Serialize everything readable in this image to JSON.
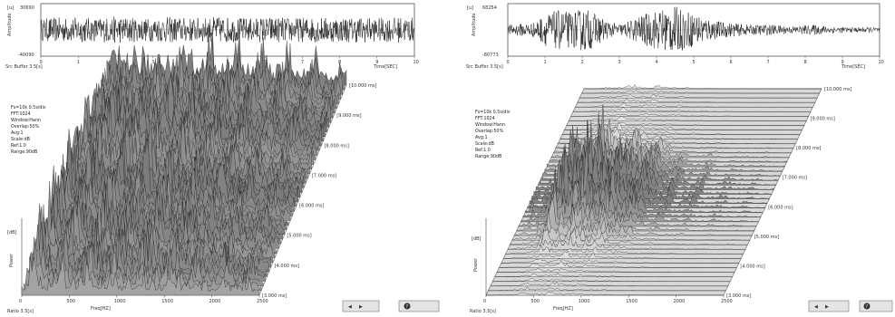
{
  "panels": [
    {
      "id": "left",
      "waveform": {
        "y_unit": "[u]",
        "y_max_label": "30690",
        "y_min_label": "-40090",
        "y_axis_label": "Amplitude",
        "x_ticks": [
          "0",
          "1",
          "2",
          "3",
          "4",
          "5",
          "6",
          "7",
          "8",
          "9",
          "10"
        ],
        "x_unit": "Time[SEC]",
        "footer": "Src Buffer  3.5[s]",
        "envelope": [
          0.45,
          0.5,
          0.48,
          0.52,
          0.47,
          0.5,
          0.55,
          0.5,
          0.46,
          0.49,
          0.52,
          0.5,
          0.48,
          0.5,
          0.53,
          0.5,
          0.47,
          0.5,
          0.52,
          0.5,
          0.48,
          0.51,
          0.5,
          0.49,
          0.5,
          0.52,
          0.47,
          0.5,
          0.51,
          0.5
        ]
      },
      "waterfall": {
        "y_unit": "[dB]",
        "y_axis_label": "Power",
        "x_ticks": [
          "0",
          "500",
          "1000",
          "1500",
          "2000",
          "2500"
        ],
        "x_label": "Freq[HZ]",
        "footer": "Ratio  3.5[s]",
        "time_labels": [
          "[10.000 ms]",
          "[9.000 ms]",
          "[8.000 ms]",
          "[7.000 ms]",
          "[6.000 ms]",
          "[5.000 ms]",
          "[4.000 ms]",
          "[3.000 ms]"
        ],
        "info_lines": [
          "Fs=10k  0.5s/div",
          "FFT:1024",
          "Window:Hann",
          "Overlap:50%",
          "Avg:1",
          "Scale:dB",
          "Ref:1.0",
          "Range:90dB"
        ],
        "controls": [
          "◀",
          "▶",
          "?"
        ],
        "activity": [
          0.6,
          0.85,
          0.7,
          0.9,
          0.75,
          0.95,
          0.8,
          0.7,
          0.9,
          0.85,
          0.75,
          0.92
        ]
      },
      "waterfall_envelope": [
        0.55,
        0.95,
        0.8,
        0.6,
        0.9,
        0.7,
        0.5,
        0.85,
        0.75,
        0.6,
        0.9,
        0.65,
        0.55,
        0.8,
        0.7,
        0.6,
        0.75,
        0.5,
        0.6,
        0.7,
        0.55,
        0.45,
        0.6,
        0.5,
        0.4,
        0.5,
        0.45,
        0.35,
        0.4,
        0.3
      ]
    },
    {
      "id": "right",
      "waveform": {
        "y_unit": "[u]",
        "y_max_label": "68254",
        "y_min_label": "-80773",
        "y_axis_label": "Amplitude",
        "x_ticks": [
          "0",
          "1",
          "2",
          "3",
          "4",
          "5",
          "6",
          "7",
          "8",
          "9",
          "10"
        ],
        "x_unit": "Time[SEC]",
        "footer": "Src Buffer  3.5[s]",
        "envelope": [
          0.2,
          0.25,
          0.3,
          0.65,
          0.8,
          0.7,
          0.9,
          0.6,
          0.3,
          0.25,
          0.5,
          0.7,
          0.85,
          0.95,
          0.75,
          0.6,
          0.4,
          0.3,
          0.25,
          0.2,
          0.22,
          0.2,
          0.15,
          0.18,
          0.2,
          0.15,
          0.12,
          0.1,
          0.12,
          0.1
        ]
      },
      "waterfall": {
        "y_unit": "[dB]",
        "y_axis_label": "Power",
        "x_ticks": [
          "0",
          "500",
          "1000",
          "1500",
          "2000",
          "2500"
        ],
        "x_label": "Freq[HZ]",
        "footer": "Ratio  3.5[s]",
        "time_labels": [
          "[10.000 ms]",
          "[9.000 ms]",
          "[8.000 ms]",
          "[7.000 ms]",
          "[6.000 ms]",
          "[5.000 ms]",
          "[4.000 ms]",
          "[3.000 ms]"
        ],
        "info_lines": [
          "Fs=10k  0.5s/div",
          "FFT:1024",
          "Window:Hann",
          "Overlap:50%",
          "Avg:1",
          "Scale:dB",
          "Ref:1.0",
          "Range:90dB"
        ],
        "controls": [
          "◀",
          "▶",
          "?"
        ],
        "activity": [
          0.05,
          0.05,
          0.1,
          0.3,
          0.7,
          0.9,
          0.85,
          0.6,
          0.2,
          0.05,
          0.05,
          0.05
        ]
      },
      "waterfall_envelope": [
        0.05,
        0.1,
        0.15,
        0.4,
        0.7,
        0.85,
        0.95,
        0.9,
        0.85,
        0.75,
        0.7,
        0.6,
        0.5,
        0.45,
        0.3,
        0.2,
        0.15,
        0.12,
        0.1,
        0.1,
        0.08,
        0.06,
        0.05,
        0.05,
        0.05,
        0.04,
        0.03,
        0.03,
        0.02,
        0.02
      ]
    }
  ],
  "chart_data": [
    {
      "type": "line",
      "title": "",
      "xlabel": "Time[SEC]",
      "ylabel": "Amplitude",
      "xlim": [
        0,
        10
      ],
      "ylim": [
        -40090,
        30690
      ],
      "series": [
        {
          "values": []
        }
      ]
    },
    {
      "type": "line",
      "title": "",
      "xlabel": "Freq[HZ]",
      "ylabel": "Power",
      "xlim": [
        0,
        2500
      ],
      "series": [
        {
          "values": []
        }
      ]
    },
    {
      "type": "line",
      "title": "",
      "xlabel": "Time[SEC]",
      "ylabel": "Amplitude",
      "xlim": [
        0,
        10
      ],
      "ylim": [
        -80773,
        68254
      ],
      "series": [
        {
          "values": []
        }
      ]
    },
    {
      "type": "line",
      "title": "",
      "xlabel": "Freq[HZ]",
      "ylabel": "Power",
      "xlim": [
        0,
        2500
      ],
      "series": [
        {
          "values": []
        }
      ]
    }
  ]
}
